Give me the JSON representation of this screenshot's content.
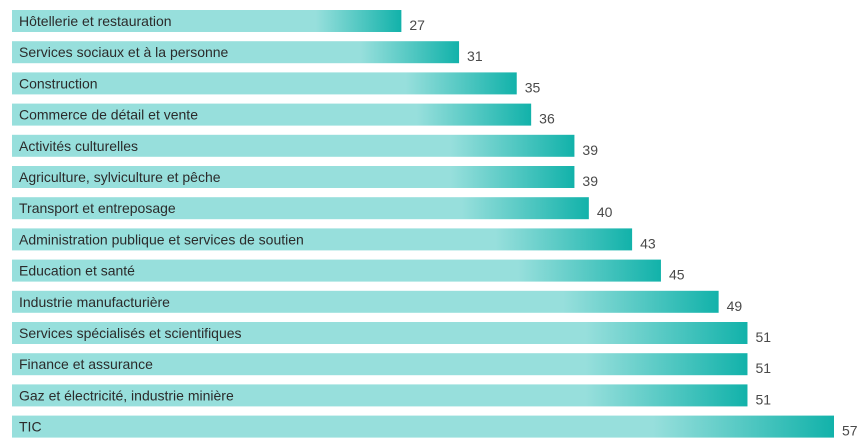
{
  "chart_data": {
    "type": "bar",
    "orientation": "horizontal",
    "categories": [
      "Hôtellerie et restauration",
      "Services sociaux et à la personne",
      "Construction",
      "Commerce de détail et vente",
      "Activités culturelles",
      "Agriculture, sylviculture et pêche",
      "Transport et entreposage",
      "Administration publique et services de soutien",
      "Education et santé",
      "Industrie manufacturière",
      "Services spécialisés et scientifiques",
      "Finance et assurance",
      "Gaz et électricité, industrie minière",
      "TIC"
    ],
    "values": [
      27,
      31,
      35,
      36,
      39,
      39,
      40,
      43,
      45,
      49,
      51,
      51,
      51,
      57
    ],
    "title": "",
    "xlabel": "",
    "ylabel": "",
    "xlim": [
      0,
      57
    ],
    "grid": false,
    "legend": false,
    "colors": {
      "bar_light": "#97dfdc",
      "bar_dark": "#12b2aa",
      "label_text": "#2b2b2b",
      "value_text": "#4a4a4a"
    }
  }
}
